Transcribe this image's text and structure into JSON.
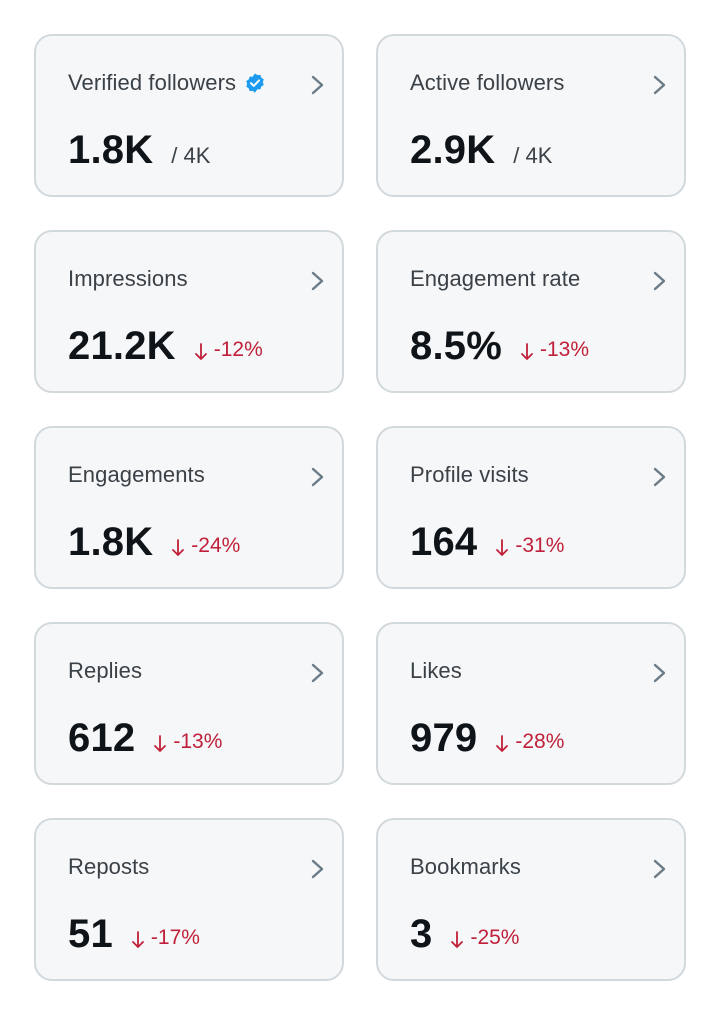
{
  "colors": {
    "card_background": "#f5f7f8",
    "card_border": "#d2d9dd",
    "negative_change": "#c0203a",
    "verified_badge": "#1d9bf0",
    "chevron": "#6b7c88"
  },
  "cards": [
    {
      "label": "Verified followers",
      "value": "1.8K",
      "total": "/ 4K",
      "icon": "verified-badge-icon"
    },
    {
      "label": "Active followers",
      "value": "2.9K",
      "total": "/ 4K"
    },
    {
      "label": "Impressions",
      "value": "21.2K",
      "change": "-12%",
      "trend": "down"
    },
    {
      "label": "Engagement rate",
      "value": "8.5%",
      "change": "-13%",
      "trend": "down"
    },
    {
      "label": "Engagements",
      "value": "1.8K",
      "change": "-24%",
      "trend": "down"
    },
    {
      "label": "Profile visits",
      "value": "164",
      "change": "-31%",
      "trend": "down"
    },
    {
      "label": "Replies",
      "value": "612",
      "change": "-13%",
      "trend": "down"
    },
    {
      "label": "Likes",
      "value": "979",
      "change": "-28%",
      "trend": "down"
    },
    {
      "label": "Reposts",
      "value": "51",
      "change": "-17%",
      "trend": "down"
    },
    {
      "label": "Bookmarks",
      "value": "3",
      "change": "-25%",
      "trend": "down"
    }
  ]
}
